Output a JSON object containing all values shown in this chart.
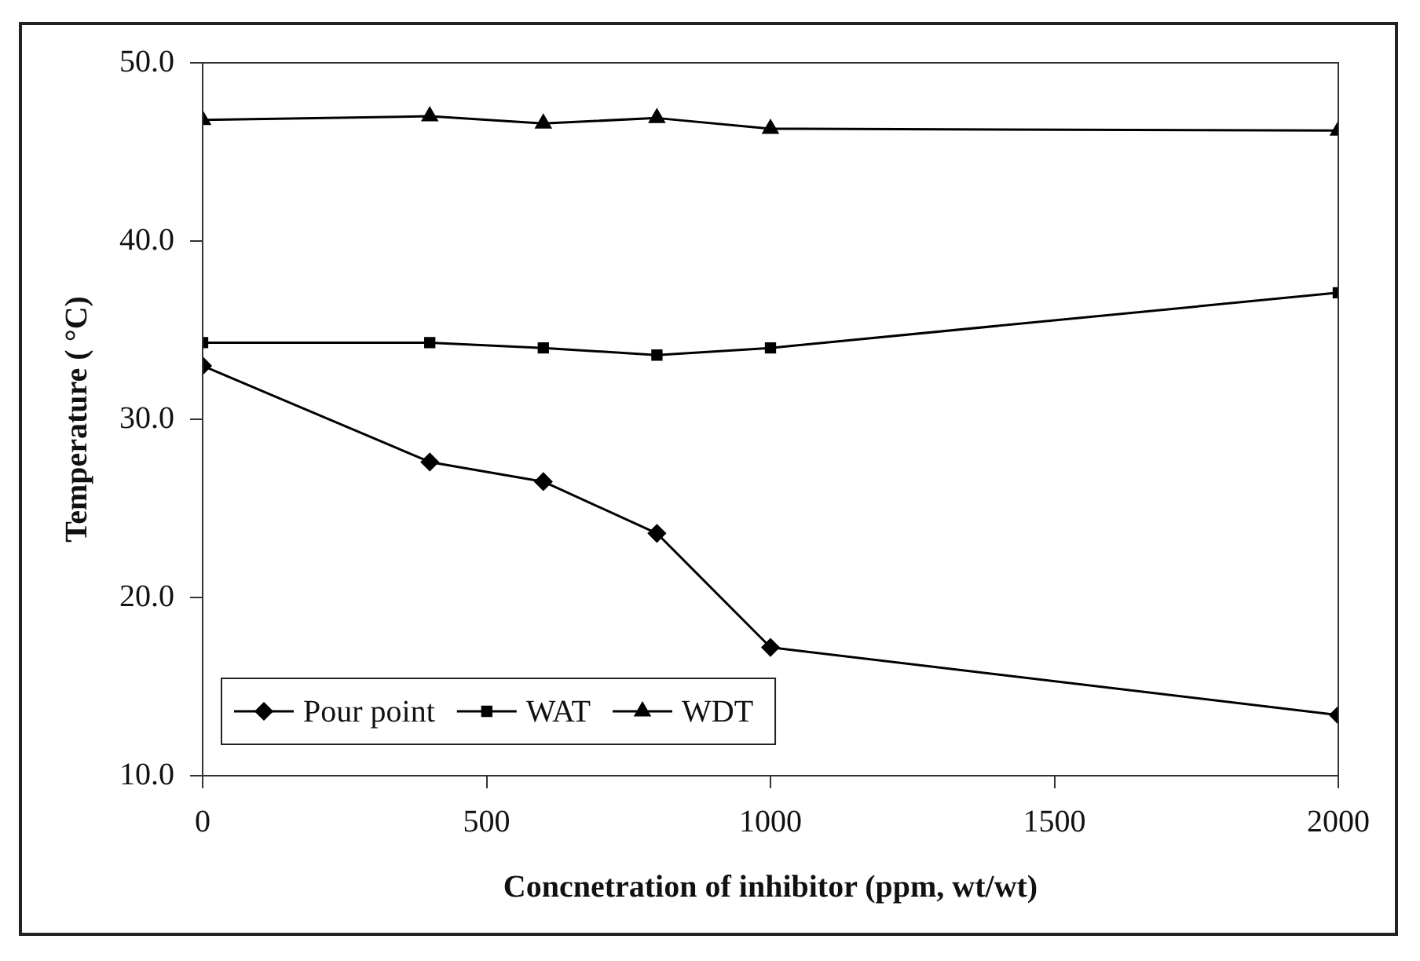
{
  "chart_data": {
    "type": "line",
    "xlabel": "Concnetration of inhibitor (ppm, wt/wt)",
    "ylabel": "Temperature ( °C)",
    "x": [
      0,
      400,
      600,
      800,
      1000,
      2000
    ],
    "series": [
      {
        "name": "Pour point",
        "color": "#000000",
        "marker": "diamond",
        "values": [
          33.0,
          27.6,
          26.5,
          23.6,
          17.2,
          13.4
        ]
      },
      {
        "name": "WAT",
        "color": "#000000",
        "marker": "square",
        "values": [
          34.3,
          34.3,
          34.0,
          33.6,
          34.0,
          37.1
        ]
      },
      {
        "name": "WDT",
        "color": "#000000",
        "marker": "triangle",
        "values": [
          46.8,
          47.0,
          46.6,
          46.9,
          46.3,
          46.2
        ]
      }
    ],
    "xlim": [
      0,
      2000
    ],
    "xticks": [
      0,
      500,
      1000,
      1500,
      2000
    ],
    "ylim": [
      10,
      50
    ],
    "yticks": [
      {
        "value": 10,
        "label": "10.0"
      },
      {
        "value": 20,
        "label": "20.0"
      },
      {
        "value": 30,
        "label": "30.0"
      },
      {
        "value": 40,
        "label": "40.0"
      },
      {
        "value": 50,
        "label": "50.0"
      }
    ],
    "grid": false,
    "legend": "bottom left",
    "line_style": "solid"
  }
}
